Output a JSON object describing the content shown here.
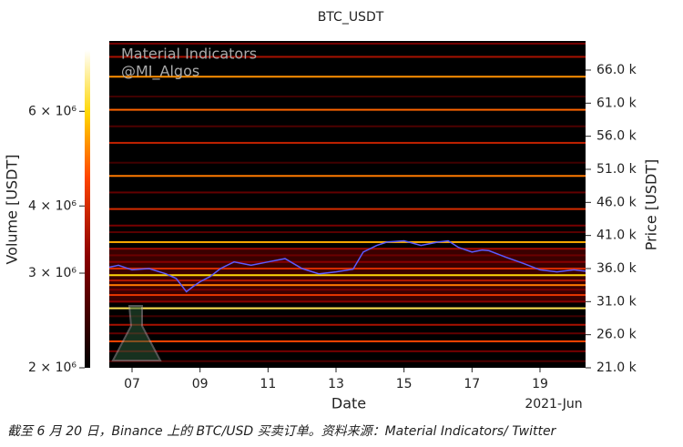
{
  "chart_data": {
    "type": "heatmap",
    "title": "BTC_USDT",
    "watermark": [
      "Material Indicators",
      "@MI_Algos"
    ],
    "xlabel": "Date",
    "x_offset_label": "2021-Jun",
    "ylabel": "Price [USDT]",
    "colorbar_label": "Volume [USDT]",
    "colormap": "hot",
    "xlim": [
      6.33,
      20.34
    ],
    "xticks": [
      {
        "value": 7,
        "label": "07"
      },
      {
        "value": 9,
        "label": "09"
      },
      {
        "value": 11,
        "label": "11"
      },
      {
        "value": 13,
        "label": "13"
      },
      {
        "value": 15,
        "label": "15"
      },
      {
        "value": 17,
        "label": "17"
      },
      {
        "value": 19,
        "label": "19"
      }
    ],
    "ylim": [
      21000,
      70400
    ],
    "yticks": [
      {
        "value": 21000,
        "label": "21.0 k"
      },
      {
        "value": 26000,
        "label": "26.0 k"
      },
      {
        "value": 31000,
        "label": "31.0 k"
      },
      {
        "value": 36000,
        "label": "36.0 k"
      },
      {
        "value": 41000,
        "label": "41.0 k"
      },
      {
        "value": 46000,
        "label": "46.0 k"
      },
      {
        "value": 51000,
        "label": "51.0 k"
      },
      {
        "value": 56000,
        "label": "56.0 k"
      },
      {
        "value": 61000,
        "label": "61.0 k"
      },
      {
        "value": 66000,
        "label": "66.0 k"
      }
    ],
    "clim": [
      2000000,
      7800000
    ],
    "cticks": [
      {
        "value": 2000000,
        "label": "2 × 10⁶"
      },
      {
        "value": 3000000,
        "label": "3 × 10⁶"
      },
      {
        "value": 4000000,
        "label": "4 × 10⁶"
      },
      {
        "value": 6000000,
        "label": "6 × 10⁶"
      }
    ],
    "log_colorbar": true,
    "levels": {
      "price": [
        22000,
        23500,
        25000,
        26200,
        27500,
        28800,
        30000,
        31000,
        32000,
        32800,
        33500,
        34200,
        35000,
        36000,
        37000,
        38000,
        39000,
        40000,
        41500,
        42500,
        45000,
        47500,
        50000,
        52000,
        55000,
        57500,
        60000,
        62000,
        65000,
        68000,
        70000
      ],
      "volume": [
        2600000,
        3000000,
        4500000,
        2800000,
        3500000,
        2500000,
        6500000,
        3200000,
        4200000,
        3000000,
        5000000,
        3600000,
        6000000,
        4000000,
        3200000,
        2900000,
        3400000,
        5500000,
        2700000,
        3000000,
        4000000,
        2800000,
        5000000,
        2500000,
        3800000,
        2600000,
        4800000,
        2500000,
        5200000,
        3500000,
        3000000
      ]
    },
    "series": [
      {
        "name": "Price",
        "color": "#5a5aff",
        "x": [
          6.33,
          6.6,
          7.0,
          7.5,
          8.0,
          8.3,
          8.6,
          8.8,
          9.0,
          9.3,
          9.6,
          10.0,
          10.5,
          11.0,
          11.5,
          12.0,
          12.5,
          13.0,
          13.5,
          13.8,
          14.2,
          14.5,
          15.0,
          15.5,
          16.0,
          16.3,
          16.6,
          17.0,
          17.3,
          17.5,
          18.0,
          18.5,
          19.0,
          19.5,
          20.0,
          20.34
        ],
        "values": [
          36200,
          36500,
          35800,
          36000,
          35200,
          34500,
          32500,
          33300,
          34000,
          34800,
          36000,
          37000,
          36500,
          37000,
          37500,
          36000,
          35200,
          35500,
          35900,
          38500,
          39500,
          40000,
          40200,
          39500,
          40000,
          40200,
          39200,
          38500,
          38800,
          38700,
          37700,
          36800,
          35800,
          35500,
          35800,
          35600
        ]
      }
    ]
  },
  "caption": "截至 6 月 20 日，Binance 上的 BTC/USD 买卖订单。资料来源：Material Indicators/ Twitter"
}
